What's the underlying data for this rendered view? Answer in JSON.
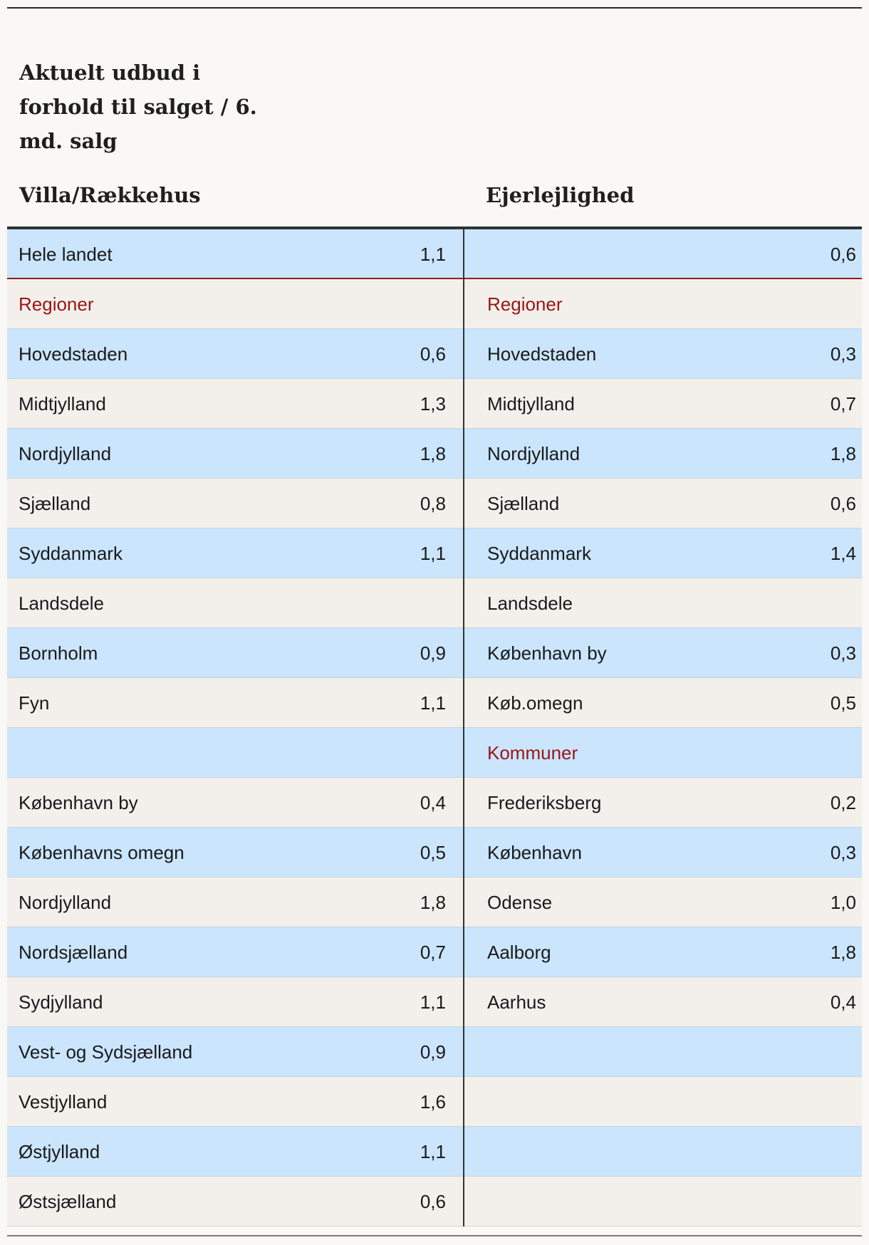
{
  "title": "Aktuelt udbud i forhold til salget / 6. md. salg",
  "columns": {
    "left_heading": "Villa/Rækkehus",
    "right_heading": "Ejerlejlighed"
  },
  "rows": [
    {
      "left_label": "Hele landet",
      "left_value": "1,1",
      "right_label": "",
      "right_value": "0,6"
    },
    {
      "left_label": "Regioner",
      "left_value": "",
      "right_label": "Regioner",
      "right_value": ""
    },
    {
      "left_label": "Hovedstaden",
      "left_value": "0,6",
      "right_label": "Hovedstaden",
      "right_value": "0,3"
    },
    {
      "left_label": "Midtjylland",
      "left_value": "1,3",
      "right_label": "Midtjylland",
      "right_value": "0,7"
    },
    {
      "left_label": "Nordjylland",
      "left_value": "1,8",
      "right_label": "Nordjylland",
      "right_value": "1,8"
    },
    {
      "left_label": "Sjælland",
      "left_value": "0,8",
      "right_label": "Sjælland",
      "right_value": "0,6"
    },
    {
      "left_label": "Syddanmark",
      "left_value": "1,1",
      "right_label": "Syddanmark",
      "right_value": "1,4"
    },
    {
      "left_label": "Landsdele",
      "left_value": "",
      "right_label": "Landsdele",
      "right_value": ""
    },
    {
      "left_label": "Bornholm",
      "left_value": "0,9",
      "right_label": "København by",
      "right_value": "0,3"
    },
    {
      "left_label": "Fyn",
      "left_value": "1,1",
      "right_label": "Køb.omegn",
      "right_value": "0,5"
    },
    {
      "left_label": "",
      "left_value": "",
      "right_label": "Kommuner",
      "right_value": ""
    },
    {
      "left_label": "København by",
      "left_value": "0,4",
      "right_label": "Frederiksberg",
      "right_value": "0,2"
    },
    {
      "left_label": "Københavns omegn",
      "left_value": "0,5",
      "right_label": "København",
      "right_value": "0,3"
    },
    {
      "left_label": "Nordjylland",
      "left_value": "1,8",
      "right_label": "Odense",
      "right_value": "1,0"
    },
    {
      "left_label": "Nordsjælland",
      "left_value": "0,7",
      "right_label": "Aalborg",
      "right_value": "1,8"
    },
    {
      "left_label": "Sydjylland",
      "left_value": "1,1",
      "right_label": "Aarhus",
      "right_value": "0,4"
    },
    {
      "left_label": "Vest- og Sydsjælland",
      "left_value": "0,9",
      "right_label": "",
      "right_value": ""
    },
    {
      "left_label": "Vestjylland",
      "left_value": "1,6",
      "right_label": "",
      "right_value": ""
    },
    {
      "left_label": "Østjylland",
      "left_value": "1,1",
      "right_label": "",
      "right_value": ""
    },
    {
      "left_label": "Østsjælland",
      "left_value": "0,6",
      "right_label": "",
      "right_value": ""
    }
  ],
  "colors": {
    "row_blue": "#cae5fc",
    "row_gray": "#f3f0ec",
    "section_red": "#9a1515",
    "background": "#faf8f4"
  }
}
